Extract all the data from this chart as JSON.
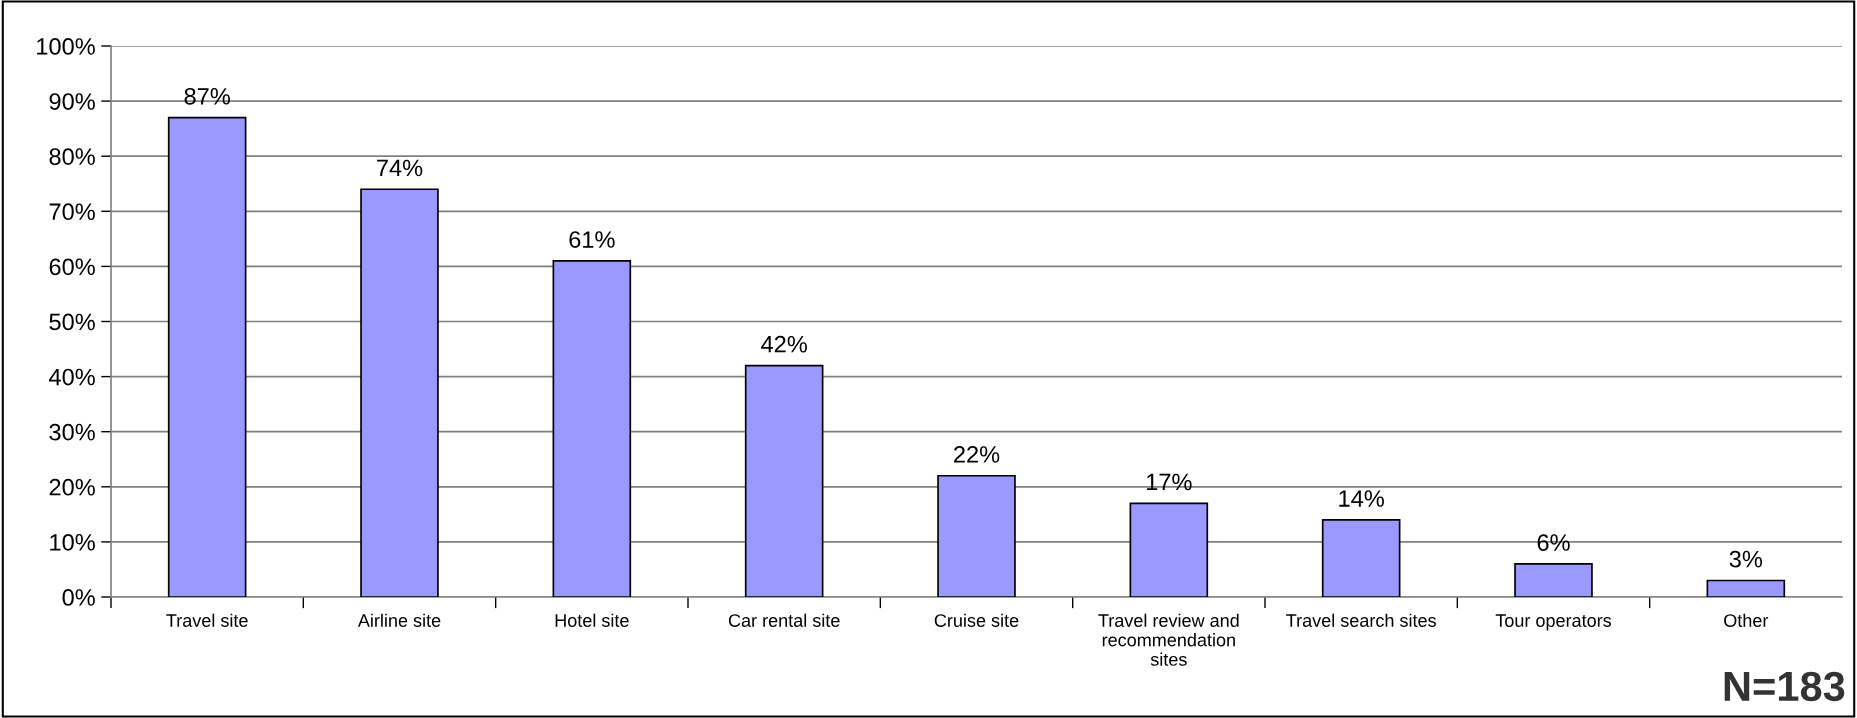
{
  "chart_data": {
    "type": "bar",
    "categories": [
      "Travel site",
      "Airline site",
      "Hotel site",
      "Car rental site",
      "Cruise site",
      "Travel review and\nrecommendation\nsites",
      "Travel search sites",
      "Tour operators",
      "Other"
    ],
    "values": [
      87,
      74,
      61,
      42,
      22,
      17,
      14,
      6,
      3
    ],
    "value_labels": [
      "87%",
      "74%",
      "61%",
      "42%",
      "22%",
      "17%",
      "14%",
      "6%",
      "3%"
    ],
    "color": "#9999ff",
    "ylim": [
      0,
      100
    ],
    "yticks": [
      {
        "value": 0,
        "label": "0%"
      },
      {
        "value": 10,
        "label": "10%"
      },
      {
        "value": 20,
        "label": "20%"
      },
      {
        "value": 30,
        "label": "30%"
      },
      {
        "value": 40,
        "label": "40%"
      },
      {
        "value": 50,
        "label": "50%"
      },
      {
        "value": 60,
        "label": "60%"
      },
      {
        "value": 70,
        "label": "70%"
      },
      {
        "value": 80,
        "label": "80%"
      },
      {
        "value": 90,
        "label": "90%"
      },
      {
        "value": 100,
        "label": "100%"
      }
    ],
    "grid": "y",
    "legend": false,
    "annotations": [
      "N=183"
    ]
  }
}
